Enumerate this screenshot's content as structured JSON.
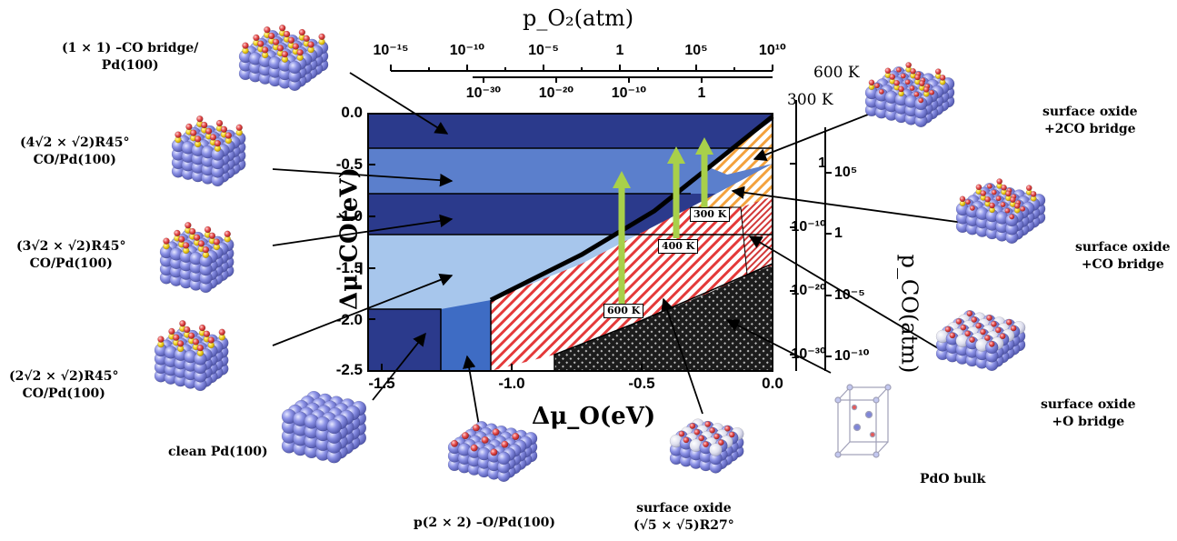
{
  "top_axis": {
    "title": "p_O₂(atm)",
    "ticks_600K": [
      "10⁻¹⁵",
      "10⁻¹⁰",
      "10⁻⁵",
      "1",
      "10⁵",
      "10¹⁰"
    ],
    "ticks_300K": [
      "10⁻³⁰",
      "10⁻²⁰",
      "10⁻¹⁰",
      "1"
    ],
    "label_600K": "600 K",
    "label_300K": "300 K"
  },
  "right_axis": {
    "title": "p_CO(atm)",
    "ticks_300K": [
      "1",
      "10⁻¹⁰",
      "10⁻²⁰",
      "10⁻³⁰"
    ],
    "ticks_600K": [
      "10⁵",
      "1",
      "10⁻⁵",
      "10⁻¹⁰"
    ]
  },
  "x_axis": {
    "title": "Δμ_O(eV)",
    "ticks": [
      "-1.5",
      "-1.0",
      "-0.5",
      "0.0"
    ]
  },
  "y_axis": {
    "title": "Δμ_CO(eV)",
    "ticks": [
      "0.0",
      "-0.5",
      "-1.0",
      "-1.5",
      "-2.0",
      "-2.5"
    ]
  },
  "temperature_arrows": [
    "600 K",
    "400 K",
    "300 K"
  ],
  "phases": [
    {
      "id": "co-bridge-1x1",
      "lines": [
        "(1 × 1) –CO bridge/",
        "Pd(100)"
      ]
    },
    {
      "id": "co-4r2",
      "lines": [
        "(4√2 × √2)R45°",
        "CO/Pd(100)"
      ]
    },
    {
      "id": "co-3r2",
      "lines": [
        "(3√2 × √2)R45°",
        "CO/Pd(100)"
      ]
    },
    {
      "id": "co-2r2",
      "lines": [
        "(2√2 × √2)R45°",
        "CO/Pd(100)"
      ]
    },
    {
      "id": "clean",
      "lines": [
        "clean Pd(100)"
      ]
    },
    {
      "id": "p2x2-o",
      "lines": [
        "p(2 × 2) –O/Pd(100)"
      ]
    },
    {
      "id": "surface-oxide",
      "lines": [
        "surface oxide",
        "(√5 × √5)R27°"
      ]
    },
    {
      "id": "pdo-bulk",
      "lines": [
        "PdO bulk"
      ]
    },
    {
      "id": "oxide-o-bridge",
      "lines": [
        "surface oxide",
        "+O bridge"
      ]
    },
    {
      "id": "oxide-co-bridge",
      "lines": [
        "surface oxide",
        "+CO bridge"
      ]
    },
    {
      "id": "oxide-2co-bridge",
      "lines": [
        "surface oxide",
        "+2CO bridge"
      ]
    }
  ],
  "colors": {
    "band_dark": "#2b3a8c",
    "band_mid": "#5b7fcc",
    "band_light": "#a7c6ec",
    "oxide_hatch": "#e43a3a",
    "co_oxide_hatch": "#f3a23e",
    "pdo_bulk": "#2a2a2a",
    "arrow": "#a8d04a",
    "atom_pd": "#8c92e6",
    "atom_o": "#e64b4b",
    "atom_c": "#f0d21e"
  }
}
